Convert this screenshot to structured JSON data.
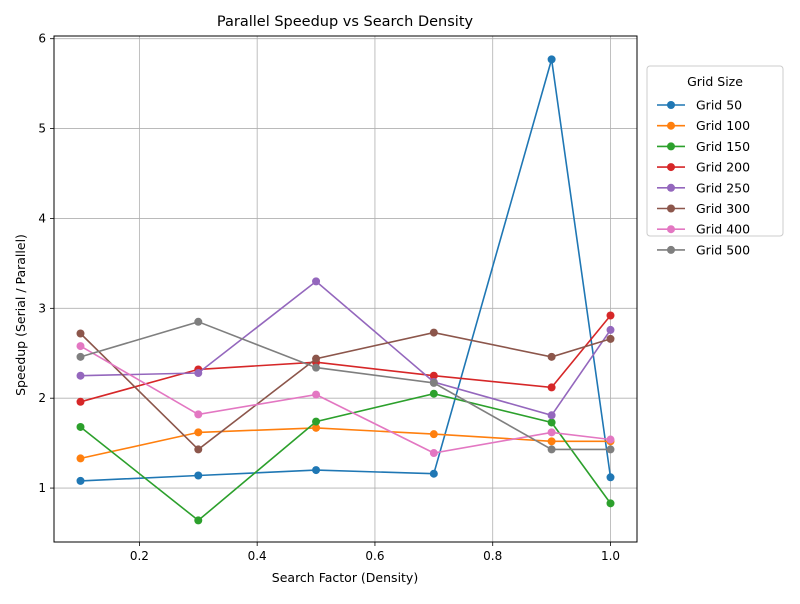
{
  "chart_data": {
    "type": "line",
    "title": "Parallel Speedup vs Search Density",
    "xlabel": "Search Factor (Density)",
    "ylabel": "Speedup (Serial / Parallel)",
    "xlim": [
      0.055,
      1.045
    ],
    "ylim": [
      0.4,
      6.03
    ],
    "xticks": [
      0.2,
      0.4,
      0.6,
      0.8,
      1.0
    ],
    "xtick_labels": [
      "0.2",
      "0.4",
      "0.6",
      "0.8",
      "1.0"
    ],
    "yticks": [
      1,
      2,
      3,
      4,
      5,
      6
    ],
    "ytick_labels": [
      "1",
      "2",
      "3",
      "4",
      "5",
      "6"
    ],
    "grid": true,
    "legend_title": "Grid Size",
    "legend_position": "outside-top-right",
    "x": [
      0.1,
      0.3,
      0.5,
      0.7,
      0.9,
      1.0
    ],
    "series": [
      {
        "name": "Grid 50",
        "color": "#1f77b4",
        "values": [
          1.08,
          1.14,
          1.2,
          1.16,
          5.77,
          1.12
        ]
      },
      {
        "name": "Grid 100",
        "color": "#ff7f0e",
        "values": [
          1.33,
          1.62,
          1.67,
          1.6,
          1.52,
          1.52
        ]
      },
      {
        "name": "Grid 150",
        "color": "#2ca02c",
        "values": [
          1.68,
          0.64,
          1.74,
          2.05,
          1.73,
          0.83
        ]
      },
      {
        "name": "Grid 200",
        "color": "#d62728",
        "values": [
          1.96,
          2.32,
          2.4,
          2.25,
          2.12,
          2.92
        ]
      },
      {
        "name": "Grid 250",
        "color": "#9467bd",
        "values": [
          2.25,
          2.28,
          3.3,
          2.18,
          1.81,
          2.76
        ]
      },
      {
        "name": "Grid 300",
        "color": "#8c564b",
        "values": [
          2.72,
          1.43,
          2.44,
          2.73,
          2.46,
          2.66
        ]
      },
      {
        "name": "Grid 400",
        "color": "#e377c2",
        "values": [
          2.58,
          1.82,
          2.04,
          1.39,
          1.62,
          1.54
        ]
      },
      {
        "name": "Grid 500",
        "color": "#7f7f7f",
        "values": [
          2.46,
          2.85,
          2.34,
          2.17,
          1.43,
          1.43
        ]
      }
    ]
  }
}
